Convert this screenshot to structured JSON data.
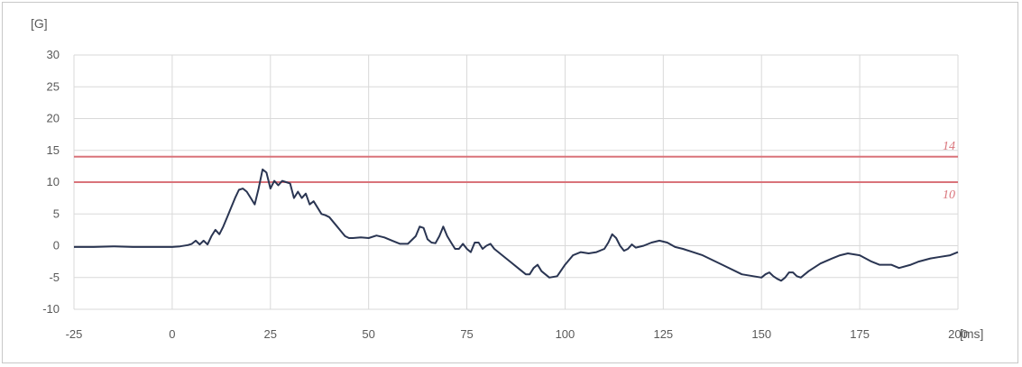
{
  "chart_data": {
    "type": "line",
    "title": "",
    "ylabel": "[G]",
    "xlabel": "[ms]",
    "xlim": [
      -25,
      200
    ],
    "ylim": [
      -10,
      30
    ],
    "xticks": [
      -25,
      0,
      25,
      50,
      75,
      100,
      125,
      150,
      175,
      200
    ],
    "yticks": [
      -10,
      -5,
      0,
      5,
      10,
      15,
      20,
      25,
      30
    ],
    "grid": true,
    "legend": "none",
    "colors": {
      "series": "#2a3552",
      "threshold": "#d9737a",
      "grid": "#d9d9d9"
    },
    "thresholds": [
      {
        "value": 14,
        "label": "14"
      },
      {
        "value": 10,
        "label": "10"
      }
    ],
    "series": [
      {
        "x": [
          -25,
          -20,
          -15,
          -10,
          -5,
          0,
          2,
          4,
          5,
          6,
          7,
          8,
          9,
          10,
          11,
          12,
          13,
          14,
          15,
          16,
          17,
          18,
          19,
          20,
          21,
          22,
          23,
          24,
          25,
          26,
          27,
          28,
          29,
          30,
          31,
          32,
          33,
          34,
          35,
          36,
          37,
          38,
          39,
          40,
          42,
          44,
          45,
          46,
          48,
          50,
          52,
          54,
          56,
          58,
          60,
          62,
          63,
          64,
          65,
          66,
          67,
          68,
          69,
          70,
          71,
          72,
          73,
          74,
          75,
          76,
          77,
          78,
          79,
          80,
          81,
          82,
          84,
          86,
          88,
          90,
          91,
          92,
          93,
          94,
          96,
          98,
          100,
          102,
          104,
          106,
          108,
          110,
          111,
          112,
          113,
          114,
          115,
          116,
          117,
          118,
          120,
          122,
          124,
          126,
          128,
          130,
          135,
          140,
          145,
          150,
          151,
          152,
          153,
          154,
          155,
          156,
          157,
          158,
          159,
          160,
          162,
          165,
          168,
          170,
          172,
          175,
          178,
          180,
          183,
          185,
          188,
          190,
          193,
          195,
          198,
          200
        ],
        "y": [
          -0.2,
          -0.2,
          -0.1,
          -0.2,
          -0.2,
          -0.2,
          -0.1,
          0.1,
          0.3,
          0.8,
          0.2,
          0.8,
          0.2,
          1.5,
          2.5,
          1.8,
          3,
          4.5,
          6,
          7.5,
          8.8,
          9,
          8.5,
          7.5,
          6.5,
          9,
          12,
          11.5,
          9,
          10.2,
          9.5,
          10.2,
          10,
          9.8,
          7.5,
          8.5,
          7.5,
          8.2,
          6.5,
          7,
          6,
          5,
          4.8,
          4.5,
          3,
          1.5,
          1.2,
          1.2,
          1.3,
          1.2,
          1.6,
          1.3,
          0.8,
          0.3,
          0.3,
          1.5,
          3,
          2.8,
          1,
          0.5,
          0.4,
          1.5,
          3,
          1.5,
          0.5,
          -0.5,
          -0.5,
          0.3,
          -0.5,
          -1,
          0.5,
          0.5,
          -0.5,
          0,
          0.3,
          -0.5,
          -1.5,
          -2.5,
          -3.5,
          -4.5,
          -4.5,
          -3.5,
          -3,
          -4,
          -5,
          -4.8,
          -3,
          -1.5,
          -1,
          -1.2,
          -1,
          -0.5,
          0.5,
          1.8,
          1.2,
          0,
          -0.8,
          -0.5,
          0.2,
          -0.3,
          0,
          0.5,
          0.8,
          0.5,
          -0.2,
          -0.5,
          -1.5,
          -3,
          -4.5,
          -5,
          -4.5,
          -4.2,
          -4.8,
          -5.2,
          -5.5,
          -5,
          -4.2,
          -4.2,
          -4.8,
          -5,
          -4,
          -2.8,
          -2,
          -1.5,
          -1.2,
          -1.5,
          -2.5,
          -3,
          -3,
          -3.5,
          -3,
          -2.5,
          -2,
          -1.8,
          -1.5,
          -1
        ]
      }
    ]
  }
}
